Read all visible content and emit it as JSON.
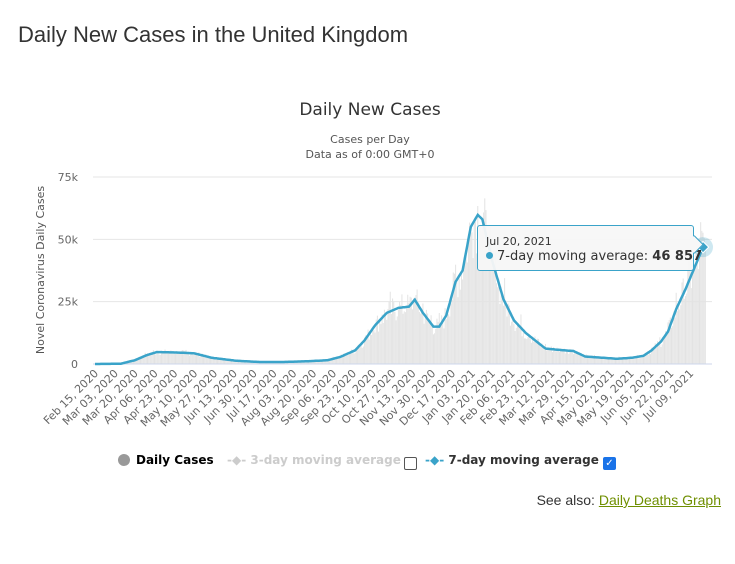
{
  "page_title": "Daily New Cases in the United Kingdom",
  "see_also": {
    "label": "See also:",
    "link": "Daily Deaths Graph"
  },
  "legend": {
    "daily": "Daily Cases",
    "ma3": "3-day moving average",
    "ma7": "7-day moving average",
    "ma3_checked": false,
    "ma7_checked": true
  },
  "tooltip": {
    "date": "Jul 20, 2021",
    "series": "7-day moving average:",
    "value": "46 857"
  },
  "colors": {
    "line": "#3aa3c9",
    "bar": "#e3e3e3",
    "legend_daily": "#999999",
    "legend_ma3": "#cccccc"
  },
  "chart_data": {
    "type": "line",
    "title": "Daily New Cases",
    "subtitle": "Cases per Day",
    "subtitle2": "Data as of 0:00 GMT+0",
    "ylabel": "Novel Coronavirus Daily Cases",
    "ylim": [
      0,
      75000
    ],
    "yticks": [
      {
        "v": 0,
        "label": "0"
      },
      {
        "v": 25000,
        "label": "25k"
      },
      {
        "v": 50000,
        "label": "50k"
      },
      {
        "v": 75000,
        "label": "75k"
      }
    ],
    "start": "2020-02-15",
    "end": "2021-07-22",
    "xticks": [
      "Feb 15, 2020",
      "Mar 03, 2020",
      "Mar 20, 2020",
      "Apr 06, 2020",
      "Apr 23, 2020",
      "May 10, 2020",
      "May 27, 2020",
      "Jun 13, 2020",
      "Jun 30, 2020",
      "Jul 17, 2020",
      "Aug 03, 2020",
      "Aug 20, 2020",
      "Sep 06, 2020",
      "Sep 23, 2020",
      "Oct 10, 2020",
      "Oct 27, 2020",
      "Nov 13, 2020",
      "Nov 30, 2020",
      "Dec 17, 2020",
      "Jan 03, 2021",
      "Jan 20, 2021",
      "Feb 06, 2021",
      "Feb 23, 2021",
      "Mar 12, 2021",
      "Mar 29, 2021",
      "Apr 15, 2021",
      "May 02, 2021",
      "May 19, 2021",
      "Jun 05, 2021",
      "Jun 22, 2021",
      "Jul 09, 2021"
    ],
    "series": [
      {
        "name": "7-day moving average",
        "points": [
          [
            "2020-02-15",
            0
          ],
          [
            "2020-03-08",
            100
          ],
          [
            "2020-03-20",
            1500
          ],
          [
            "2020-03-30",
            3500
          ],
          [
            "2020-04-08",
            4800
          ],
          [
            "2020-04-25",
            4600
          ],
          [
            "2020-05-10",
            4300
          ],
          [
            "2020-05-25",
            2500
          ],
          [
            "2020-06-15",
            1300
          ],
          [
            "2020-07-05",
            800
          ],
          [
            "2020-07-25",
            800
          ],
          [
            "2020-08-15",
            1100
          ],
          [
            "2020-09-01",
            1500
          ],
          [
            "2020-09-12",
            2800
          ],
          [
            "2020-09-25",
            5500
          ],
          [
            "2020-10-03",
            9500
          ],
          [
            "2020-10-12",
            15500
          ],
          [
            "2020-10-22",
            20500
          ],
          [
            "2020-11-01",
            22500
          ],
          [
            "2020-11-10",
            23000
          ],
          [
            "2020-11-15",
            25800
          ],
          [
            "2020-11-22",
            20500
          ],
          [
            "2020-12-01",
            15000
          ],
          [
            "2020-12-06",
            15000
          ],
          [
            "2020-12-12",
            19500
          ],
          [
            "2020-12-20",
            33000
          ],
          [
            "2020-12-26",
            37500
          ],
          [
            "2021-01-02",
            55000
          ],
          [
            "2021-01-08",
            59800
          ],
          [
            "2021-01-12",
            58000
          ],
          [
            "2021-01-20",
            42000
          ],
          [
            "2021-01-30",
            26000
          ],
          [
            "2021-02-08",
            17500
          ],
          [
            "2021-02-18",
            12500
          ],
          [
            "2021-02-26",
            9500
          ],
          [
            "2021-03-07",
            6200
          ],
          [
            "2021-03-20",
            5600
          ],
          [
            "2021-03-31",
            5200
          ],
          [
            "2021-04-10",
            3000
          ],
          [
            "2021-04-25",
            2500
          ],
          [
            "2021-05-07",
            2100
          ],
          [
            "2021-05-20",
            2500
          ],
          [
            "2021-05-30",
            3300
          ],
          [
            "2021-06-06",
            5500
          ],
          [
            "2021-06-14",
            9000
          ],
          [
            "2021-06-20",
            13000
          ],
          [
            "2021-06-27",
            22000
          ],
          [
            "2021-07-05",
            30000
          ],
          [
            "2021-07-13",
            39000
          ],
          [
            "2021-07-20",
            46857
          ],
          [
            "2021-07-22",
            45500
          ]
        ]
      }
    ]
  }
}
